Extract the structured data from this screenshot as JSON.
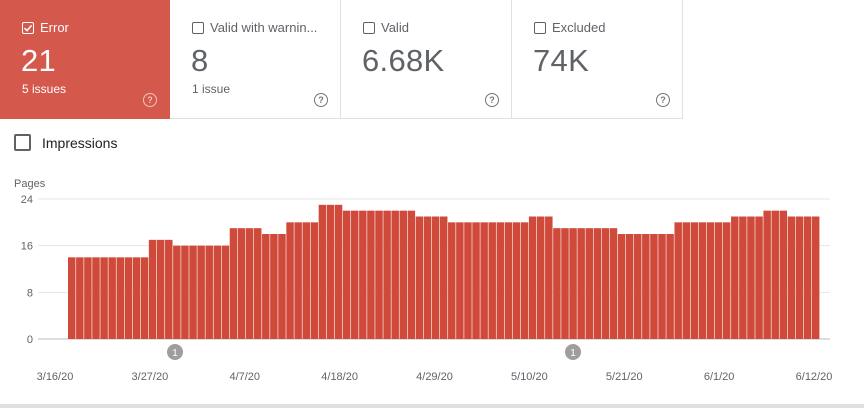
{
  "cards": [
    {
      "label": "Error",
      "count": "21",
      "sub": "5 issues",
      "help": "?",
      "checked": true
    },
    {
      "label": "Valid with warnin...",
      "count": "8",
      "sub": "1 issue",
      "help": "?",
      "checked": false
    },
    {
      "label": "Valid",
      "count": "6.68K",
      "sub": "",
      "help": "?",
      "checked": false
    },
    {
      "label": "Excluded",
      "count": "74K",
      "sub": "",
      "help": "?",
      "checked": false
    }
  ],
  "impressions_label": "Impressions",
  "colors": {
    "accent": "#d4584b",
    "bar": "#d04a3c",
    "grid": "#e0e0e0",
    "axis_text": "#5f6368"
  },
  "chart_data": {
    "type": "bar",
    "ylabel": "Pages",
    "ylim": [
      0,
      24
    ],
    "yticks": [
      "24",
      "16",
      "8",
      "0"
    ],
    "x_tick_labels": [
      "3/16/20",
      "3/27/20",
      "4/7/20",
      "4/18/20",
      "4/29/20",
      "5/10/20",
      "5/21/20",
      "6/1/20",
      "6/12/20"
    ],
    "grid": true,
    "series": [
      {
        "values": [
          14,
          14,
          14,
          14,
          14,
          14,
          14,
          14,
          14,
          14,
          17,
          17,
          17,
          16,
          16,
          16,
          16,
          16,
          16,
          16,
          19,
          19,
          19,
          19,
          18,
          18,
          18,
          20,
          20,
          20,
          20,
          23,
          23,
          23,
          22,
          22,
          22,
          22,
          22,
          22,
          22,
          22,
          22,
          21,
          21,
          21,
          21,
          20,
          20,
          20,
          20,
          20,
          20,
          20,
          20,
          20,
          20,
          21,
          21,
          21,
          19,
          19,
          19,
          19,
          19,
          19,
          19,
          19,
          18,
          18,
          18,
          18,
          18,
          18,
          18,
          20,
          20,
          20,
          20,
          20,
          20,
          20,
          21,
          21,
          21,
          21,
          22,
          22,
          22,
          21,
          21,
          21,
          21
        ]
      }
    ],
    "annotations": [
      {
        "label": "1",
        "date": "3/28/20"
      },
      {
        "label": "1",
        "date": "5/14/20"
      }
    ]
  }
}
